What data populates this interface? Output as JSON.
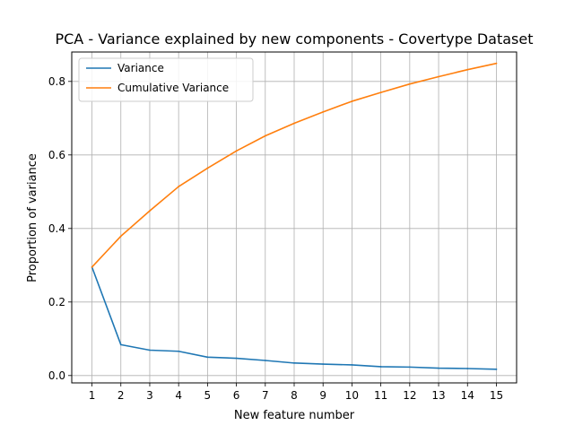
{
  "chart_data": {
    "type": "line",
    "title": "PCA - Variance explained by new components - Covertype Dataset",
    "xlabel": "New feature number",
    "ylabel": "Proportion of variance",
    "x": [
      1,
      2,
      3,
      4,
      5,
      6,
      7,
      8,
      9,
      10,
      11,
      12,
      13,
      14,
      15
    ],
    "xticks": [
      "1",
      "2",
      "3",
      "4",
      "5",
      "6",
      "7",
      "8",
      "9",
      "10",
      "11",
      "12",
      "13",
      "14",
      "15"
    ],
    "yticks": [
      "0.0",
      "0.2",
      "0.4",
      "0.6",
      "0.8"
    ],
    "ytick_values": [
      0.0,
      0.2,
      0.4,
      0.6,
      0.8
    ],
    "xlim": [
      0.3,
      15.7
    ],
    "ylim": [
      -0.02,
      0.88
    ],
    "grid": true,
    "legend_position": "top-left",
    "series": [
      {
        "name": "Variance",
        "color": "#1f77b4",
        "values": [
          0.295,
          0.084,
          0.069,
          0.066,
          0.05,
          0.047,
          0.041,
          0.034,
          0.031,
          0.029,
          0.024,
          0.023,
          0.02,
          0.019,
          0.017
        ]
      },
      {
        "name": "Cumulative Variance",
        "color": "#ff7f0e",
        "values": [
          0.295,
          0.379,
          0.448,
          0.514,
          0.564,
          0.611,
          0.652,
          0.686,
          0.717,
          0.746,
          0.77,
          0.793,
          0.813,
          0.832,
          0.849
        ]
      }
    ]
  }
}
